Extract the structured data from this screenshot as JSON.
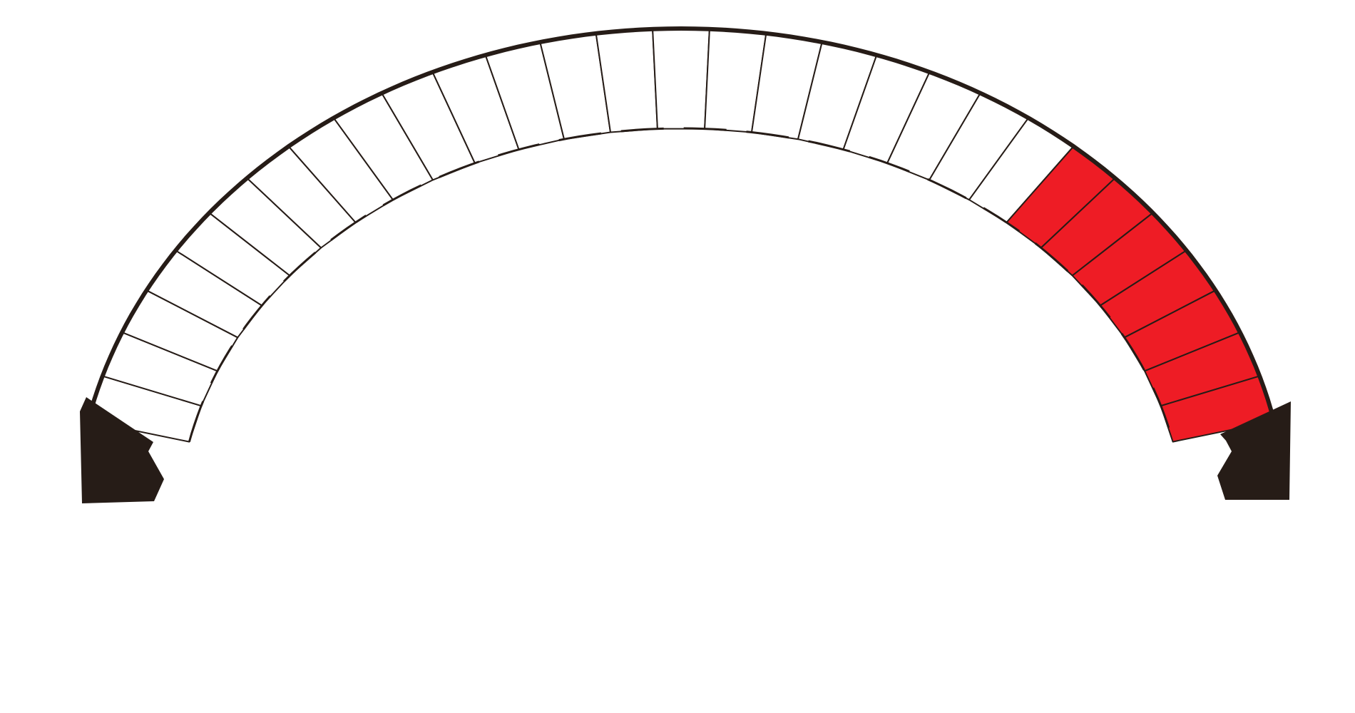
{
  "figure": {
    "kind": "stone arch diagram",
    "voussoir_count": 29,
    "highlighted_voussoir_count": 7,
    "highlighted_side": "right",
    "colors": {
      "outline": "#261c17",
      "voussoir_fill": "#ffffff",
      "highlight_fill": "#ee1c25",
      "abutment_fill": "#261c17",
      "background": "#ffffff"
    }
  }
}
